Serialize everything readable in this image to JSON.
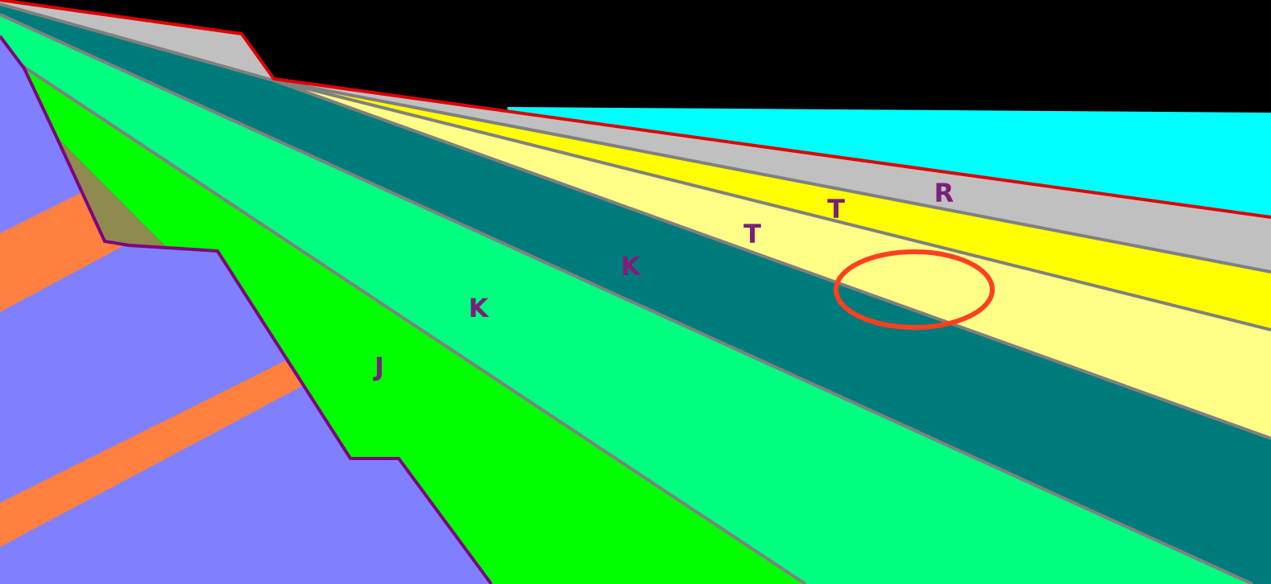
{
  "labels": [
    "R",
    "T",
    "T",
    "K",
    "K",
    "J"
  ]
}
